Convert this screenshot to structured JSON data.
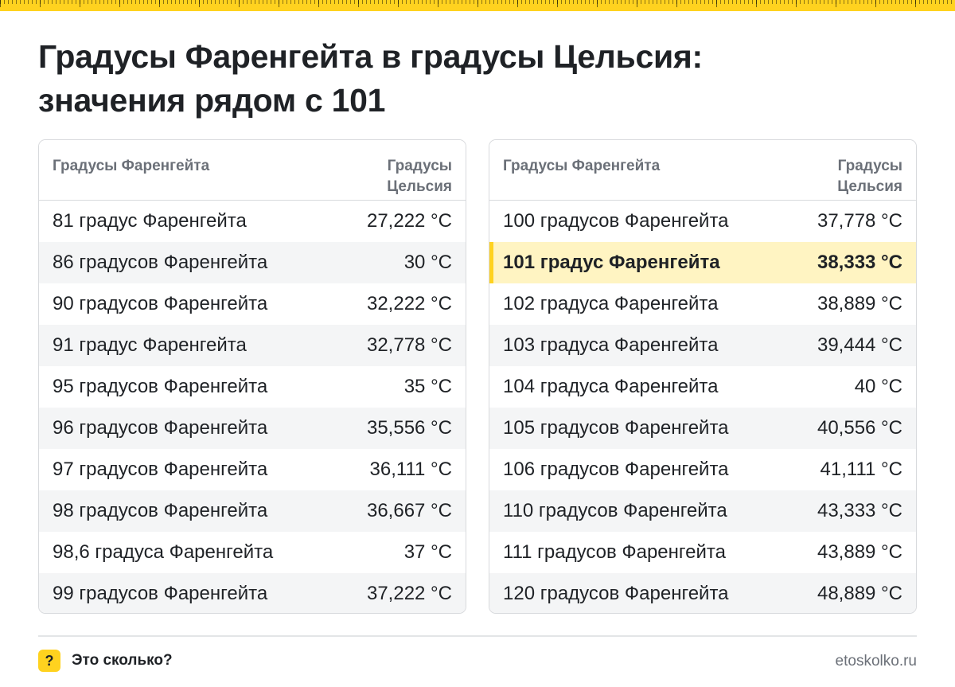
{
  "title": {
    "line1": "Градусы Фаренгейта в градусы Цельсия:",
    "line2": "значения рядом с 101"
  },
  "colors": {
    "accent": "#ffd21f",
    "highlight_bg": "#fff4c2",
    "text": "#1f2226",
    "muted": "#6b7078"
  },
  "tables": [
    {
      "header": {
        "fahrenheit": "Градусы Фаренгейта",
        "celsius_line1": "Градусы",
        "celsius_line2": "Цельсия"
      },
      "rows": [
        {
          "f": "81 градус Фаренгейта",
          "c": "27,222 °C"
        },
        {
          "f": "86 градусов Фаренгейта",
          "c": "30 °C"
        },
        {
          "f": "90 градусов Фаренгейта",
          "c": "32,222 °C"
        },
        {
          "f": "91 градус Фаренгейта",
          "c": "32,778 °C"
        },
        {
          "f": "95 градусов Фаренгейта",
          "c": "35 °C"
        },
        {
          "f": "96 градусов Фаренгейта",
          "c": "35,556 °C"
        },
        {
          "f": "97 градусов Фаренгейта",
          "c": "36,111 °C"
        },
        {
          "f": "98 градусов Фаренгейта",
          "c": "36,667 °C"
        },
        {
          "f": "98,6 градуса Фаренгейта",
          "c": "37 °C"
        },
        {
          "f": "99 градусов Фаренгейта",
          "c": "37,222 °C"
        }
      ]
    },
    {
      "header": {
        "fahrenheit": "Градусы Фаренгейта",
        "celsius_line1": "Градусы",
        "celsius_line2": "Цельсия"
      },
      "rows": [
        {
          "f": "100 градусов Фаренгейта",
          "c": "37,778 °C"
        },
        {
          "f": "101 градус Фаренгейта",
          "c": "38,333 °C",
          "highlighted": true
        },
        {
          "f": "102 градуса Фаренгейта",
          "c": "38,889 °C"
        },
        {
          "f": "103 градуса Фаренгейта",
          "c": "39,444 °C"
        },
        {
          "f": "104 градуса Фаренгейта",
          "c": "40 °C"
        },
        {
          "f": "105 градусов Фаренгейта",
          "c": "40,556 °C"
        },
        {
          "f": "106 градусов Фаренгейта",
          "c": "41,111 °C"
        },
        {
          "f": "110 градусов Фаренгейта",
          "c": "43,333 °C"
        },
        {
          "f": "111 градусов Фаренгейта",
          "c": "43,889 °C"
        },
        {
          "f": "120 градусов Фаренгейта",
          "c": "48,889 °C"
        }
      ]
    }
  ],
  "footer": {
    "badge_icon": "question-icon",
    "badge_glyph": "?",
    "brand": "Это сколько?",
    "site": "etoskolko.ru"
  }
}
